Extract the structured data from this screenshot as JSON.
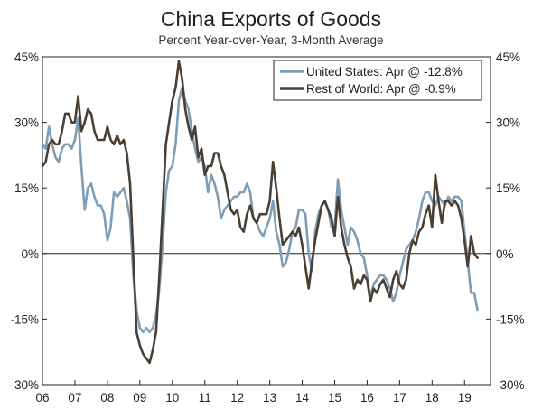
{
  "chart_data": {
    "type": "line",
    "title": "China Exports of Goods",
    "subtitle": "Percent Year-over-Year, 3-Month Average",
    "xlabel": "",
    "ylabel": "",
    "ylim": [
      -30,
      45
    ],
    "xlim": [
      2006.0,
      2019.8
    ],
    "grid": false,
    "zero_line": true,
    "legend_position": "top-right",
    "y_ticks": [
      {
        "value": 45,
        "label": "45%"
      },
      {
        "value": 30,
        "label": "30%"
      },
      {
        "value": 15,
        "label": "15%"
      },
      {
        "value": 0,
        "label": "0%"
      },
      {
        "value": -15,
        "label": "-15%"
      },
      {
        "value": -30,
        "label": "-30%"
      }
    ],
    "x_ticks": [
      {
        "value": 2006,
        "label": "06"
      },
      {
        "value": 2007,
        "label": "07"
      },
      {
        "value": 2008,
        "label": "08"
      },
      {
        "value": 2009,
        "label": "09"
      },
      {
        "value": 2010,
        "label": "10"
      },
      {
        "value": 2011,
        "label": "11"
      },
      {
        "value": 2012,
        "label": "12"
      },
      {
        "value": 2013,
        "label": "13"
      },
      {
        "value": 2014,
        "label": "14"
      },
      {
        "value": 2015,
        "label": "15"
      },
      {
        "value": 2016,
        "label": "16"
      },
      {
        "value": 2017,
        "label": "17"
      },
      {
        "value": 2018,
        "label": "18"
      },
      {
        "value": 2019,
        "label": "19"
      }
    ],
    "series": [
      {
        "name": "United States: Apr @ -12.8%",
        "color": "#7f9db5",
        "points": [
          [
            2006.0,
            25
          ],
          [
            2006.1,
            24
          ],
          [
            2006.2,
            29
          ],
          [
            2006.3,
            25
          ],
          [
            2006.4,
            22
          ],
          [
            2006.5,
            21
          ],
          [
            2006.6,
            24
          ],
          [
            2006.7,
            25
          ],
          [
            2006.8,
            25
          ],
          [
            2006.9,
            24
          ],
          [
            2007.0,
            26
          ],
          [
            2007.1,
            31
          ],
          [
            2007.2,
            20
          ],
          [
            2007.3,
            10
          ],
          [
            2007.4,
            15
          ],
          [
            2007.5,
            16
          ],
          [
            2007.6,
            13
          ],
          [
            2007.7,
            11
          ],
          [
            2007.8,
            11
          ],
          [
            2007.9,
            9
          ],
          [
            2008.0,
            3
          ],
          [
            2008.1,
            6
          ],
          [
            2008.2,
            14
          ],
          [
            2008.3,
            13
          ],
          [
            2008.4,
            14
          ],
          [
            2008.5,
            15
          ],
          [
            2008.6,
            12
          ],
          [
            2008.7,
            8
          ],
          [
            2008.8,
            -5
          ],
          [
            2008.9,
            -13
          ],
          [
            2009.0,
            -17
          ],
          [
            2009.1,
            -18
          ],
          [
            2009.2,
            -17
          ],
          [
            2009.3,
            -18
          ],
          [
            2009.4,
            -17
          ],
          [
            2009.5,
            -14
          ],
          [
            2009.6,
            -8
          ],
          [
            2009.7,
            2
          ],
          [
            2009.8,
            14
          ],
          [
            2009.9,
            19
          ],
          [
            2010.0,
            20
          ],
          [
            2010.1,
            25
          ],
          [
            2010.2,
            35
          ],
          [
            2010.3,
            38
          ],
          [
            2010.4,
            35
          ],
          [
            2010.5,
            33
          ],
          [
            2010.6,
            28
          ],
          [
            2010.7,
            24
          ],
          [
            2010.8,
            21
          ],
          [
            2010.9,
            22
          ],
          [
            2011.0,
            20
          ],
          [
            2011.1,
            14
          ],
          [
            2011.2,
            18
          ],
          [
            2011.3,
            16
          ],
          [
            2011.4,
            13
          ],
          [
            2011.5,
            8
          ],
          [
            2011.6,
            10
          ],
          [
            2011.7,
            11
          ],
          [
            2011.8,
            12
          ],
          [
            2011.9,
            13
          ],
          [
            2012.0,
            13
          ],
          [
            2012.1,
            14
          ],
          [
            2012.2,
            14
          ],
          [
            2012.3,
            16
          ],
          [
            2012.4,
            14
          ],
          [
            2012.5,
            8
          ],
          [
            2012.6,
            7
          ],
          [
            2012.7,
            5
          ],
          [
            2012.8,
            4
          ],
          [
            2012.9,
            6
          ],
          [
            2013.0,
            8
          ],
          [
            2013.1,
            12
          ],
          [
            2013.2,
            5
          ],
          [
            2013.3,
            2
          ],
          [
            2013.4,
            -3
          ],
          [
            2013.5,
            -2
          ],
          [
            2013.6,
            1
          ],
          [
            2013.7,
            5
          ],
          [
            2013.8,
            6
          ],
          [
            2013.9,
            10
          ],
          [
            2014.0,
            10
          ],
          [
            2014.1,
            9
          ],
          [
            2014.2,
            0
          ],
          [
            2014.3,
            -4
          ],
          [
            2014.4,
            5
          ],
          [
            2014.5,
            9
          ],
          [
            2014.6,
            11
          ],
          [
            2014.7,
            12
          ],
          [
            2014.8,
            10
          ],
          [
            2014.9,
            6
          ],
          [
            2015.0,
            6
          ],
          [
            2015.1,
            17
          ],
          [
            2015.2,
            10
          ],
          [
            2015.3,
            6
          ],
          [
            2015.4,
            2
          ],
          [
            2015.5,
            6
          ],
          [
            2015.6,
            5
          ],
          [
            2015.7,
            3
          ],
          [
            2015.8,
            0
          ],
          [
            2015.9,
            -1
          ],
          [
            2016.0,
            -5
          ],
          [
            2016.1,
            -10
          ],
          [
            2016.2,
            -7
          ],
          [
            2016.3,
            -6
          ],
          [
            2016.4,
            -5
          ],
          [
            2016.5,
            -5
          ],
          [
            2016.6,
            -6
          ],
          [
            2016.7,
            -8
          ],
          [
            2016.8,
            -11
          ],
          [
            2016.9,
            -9
          ],
          [
            2017.0,
            -5
          ],
          [
            2017.1,
            -2
          ],
          [
            2017.2,
            1
          ],
          [
            2017.3,
            2
          ],
          [
            2017.4,
            3
          ],
          [
            2017.5,
            5
          ],
          [
            2017.6,
            8
          ],
          [
            2017.7,
            12
          ],
          [
            2017.8,
            14
          ],
          [
            2017.9,
            14
          ],
          [
            2018.0,
            12
          ],
          [
            2018.1,
            11
          ],
          [
            2018.2,
            13
          ],
          [
            2018.3,
            12
          ],
          [
            2018.4,
            11
          ],
          [
            2018.5,
            13
          ],
          [
            2018.6,
            12
          ],
          [
            2018.7,
            13
          ],
          [
            2018.8,
            13
          ],
          [
            2018.9,
            12
          ],
          [
            2019.0,
            5
          ],
          [
            2019.1,
            -2
          ],
          [
            2019.2,
            -9
          ],
          [
            2019.3,
            -9
          ],
          [
            2019.4,
            -13
          ]
        ]
      },
      {
        "name": "Rest of World: Apr @ -0.9%",
        "color": "#4a3f34",
        "points": [
          [
            2006.0,
            20
          ],
          [
            2006.1,
            21
          ],
          [
            2006.2,
            25
          ],
          [
            2006.3,
            26
          ],
          [
            2006.4,
            25
          ],
          [
            2006.5,
            25
          ],
          [
            2006.6,
            28
          ],
          [
            2006.7,
            32
          ],
          [
            2006.8,
            32
          ],
          [
            2006.9,
            30
          ],
          [
            2007.0,
            30
          ],
          [
            2007.1,
            36
          ],
          [
            2007.2,
            28
          ],
          [
            2007.3,
            30
          ],
          [
            2007.4,
            33
          ],
          [
            2007.5,
            32
          ],
          [
            2007.6,
            28
          ],
          [
            2007.7,
            26
          ],
          [
            2007.8,
            26
          ],
          [
            2007.9,
            26
          ],
          [
            2008.0,
            29
          ],
          [
            2008.1,
            26
          ],
          [
            2008.2,
            25
          ],
          [
            2008.3,
            27
          ],
          [
            2008.4,
            25
          ],
          [
            2008.5,
            26
          ],
          [
            2008.6,
            23
          ],
          [
            2008.7,
            16
          ],
          [
            2008.8,
            -1
          ],
          [
            2008.9,
            -18
          ],
          [
            2009.0,
            -21
          ],
          [
            2009.1,
            -23
          ],
          [
            2009.2,
            -24
          ],
          [
            2009.3,
            -25
          ],
          [
            2009.4,
            -22
          ],
          [
            2009.5,
            -18
          ],
          [
            2009.6,
            -5
          ],
          [
            2009.7,
            10
          ],
          [
            2009.8,
            25
          ],
          [
            2009.9,
            30
          ],
          [
            2010.0,
            35
          ],
          [
            2010.1,
            38
          ],
          [
            2010.2,
            44
          ],
          [
            2010.3,
            40
          ],
          [
            2010.4,
            33
          ],
          [
            2010.5,
            29
          ],
          [
            2010.6,
            26
          ],
          [
            2010.7,
            29
          ],
          [
            2010.8,
            22
          ],
          [
            2010.9,
            24
          ],
          [
            2011.0,
            18
          ],
          [
            2011.1,
            20
          ],
          [
            2011.2,
            20
          ],
          [
            2011.3,
            23
          ],
          [
            2011.4,
            23
          ],
          [
            2011.5,
            20
          ],
          [
            2011.6,
            18
          ],
          [
            2011.7,
            14
          ],
          [
            2011.8,
            10
          ],
          [
            2011.9,
            9
          ],
          [
            2012.0,
            10
          ],
          [
            2012.1,
            6
          ],
          [
            2012.2,
            5
          ],
          [
            2012.3,
            9
          ],
          [
            2012.4,
            11
          ],
          [
            2012.5,
            8
          ],
          [
            2012.6,
            7
          ],
          [
            2012.7,
            9
          ],
          [
            2012.8,
            9
          ],
          [
            2012.9,
            9
          ],
          [
            2013.0,
            12
          ],
          [
            2013.1,
            21
          ],
          [
            2013.2,
            15
          ],
          [
            2013.3,
            8
          ],
          [
            2013.4,
            2
          ],
          [
            2013.5,
            3
          ],
          [
            2013.6,
            4
          ],
          [
            2013.7,
            5
          ],
          [
            2013.8,
            4
          ],
          [
            2013.9,
            6
          ],
          [
            2014.0,
            2
          ],
          [
            2014.1,
            -3
          ],
          [
            2014.2,
            -8
          ],
          [
            2014.3,
            -2
          ],
          [
            2014.4,
            3
          ],
          [
            2014.5,
            7
          ],
          [
            2014.6,
            11
          ],
          [
            2014.7,
            12
          ],
          [
            2014.8,
            10
          ],
          [
            2014.9,
            8
          ],
          [
            2015.0,
            4
          ],
          [
            2015.1,
            13
          ],
          [
            2015.2,
            6
          ],
          [
            2015.3,
            2
          ],
          [
            2015.4,
            -1
          ],
          [
            2015.5,
            -3
          ],
          [
            2015.6,
            -8
          ],
          [
            2015.7,
            -6
          ],
          [
            2015.8,
            -7
          ],
          [
            2015.9,
            -5
          ],
          [
            2016.0,
            -6
          ],
          [
            2016.1,
            -11
          ],
          [
            2016.2,
            -8
          ],
          [
            2016.3,
            -9
          ],
          [
            2016.4,
            -7
          ],
          [
            2016.5,
            -6
          ],
          [
            2016.6,
            -8
          ],
          [
            2016.7,
            -10
          ],
          [
            2016.8,
            -6
          ],
          [
            2016.9,
            -4
          ],
          [
            2017.0,
            -7
          ],
          [
            2017.1,
            -8
          ],
          [
            2017.2,
            -6
          ],
          [
            2017.3,
            0
          ],
          [
            2017.4,
            3
          ],
          [
            2017.5,
            2
          ],
          [
            2017.6,
            5
          ],
          [
            2017.7,
            6
          ],
          [
            2017.8,
            9
          ],
          [
            2017.9,
            11
          ],
          [
            2018.0,
            6
          ],
          [
            2018.1,
            18
          ],
          [
            2018.2,
            12
          ],
          [
            2018.3,
            7
          ],
          [
            2018.4,
            12
          ],
          [
            2018.5,
            12
          ],
          [
            2018.6,
            11
          ],
          [
            2018.7,
            12
          ],
          [
            2018.8,
            11
          ],
          [
            2018.9,
            8
          ],
          [
            2019.0,
            3
          ],
          [
            2019.1,
            -3
          ],
          [
            2019.2,
            4
          ],
          [
            2019.3,
            0
          ],
          [
            2019.4,
            -1
          ]
        ]
      }
    ]
  }
}
